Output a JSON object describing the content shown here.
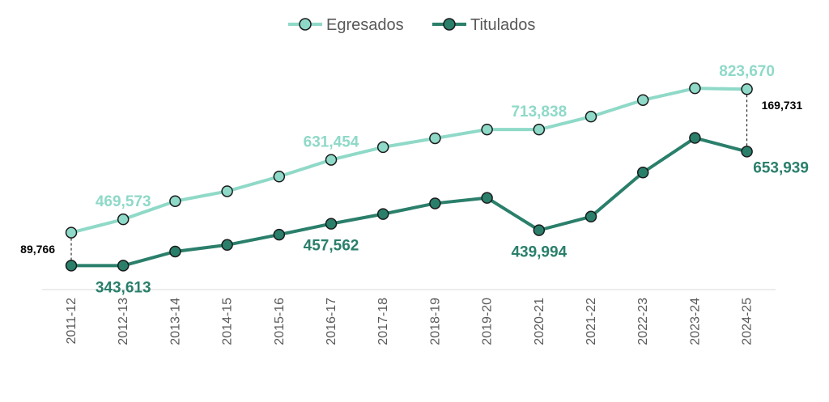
{
  "chart_data": {
    "type": "line",
    "title": "",
    "xlabel": "",
    "ylabel": "",
    "ylim": [
      0,
      1000000
    ],
    "grid": false,
    "legend_position": "top-center",
    "categories": [
      "2011-12",
      "2012-13",
      "2013-14",
      "2014-15",
      "2015-16",
      "2016-17",
      "2017-18",
      "2018-19",
      "2019-20",
      "2020-21",
      "2021-22",
      "2022-23",
      "2023-24",
      "2024-25"
    ],
    "series": [
      {
        "name": "Egresados",
        "color": "#8fd9c8",
        "values": [
          433400,
          469573,
          519000,
          546000,
          586000,
          631454,
          666000,
          690000,
          714000,
          713838,
          749000,
          794000,
          826000,
          823670
        ]
      },
      {
        "name": "Titulados",
        "color": "#2a7f6b",
        "values": [
          343634,
          343613,
          382000,
          400000,
          428000,
          457562,
          484000,
          513000,
          528000,
          439994,
          477000,
          597000,
          691000,
          653939
        ]
      }
    ],
    "data_labels": [
      {
        "series": 0,
        "index": 1,
        "text": "469,573",
        "pos": "above"
      },
      {
        "series": 0,
        "index": 5,
        "text": "631,454",
        "pos": "above"
      },
      {
        "series": 0,
        "index": 9,
        "text": "713,838",
        "pos": "above"
      },
      {
        "series": 0,
        "index": 13,
        "text": "823,670",
        "pos": "above"
      },
      {
        "series": 1,
        "index": 1,
        "text": "343,613",
        "pos": "below"
      },
      {
        "series": 1,
        "index": 5,
        "text": "457,562",
        "pos": "below"
      },
      {
        "series": 1,
        "index": 9,
        "text": "439,994",
        "pos": "below"
      },
      {
        "series": 1,
        "index": 13,
        "text": "653,939",
        "pos": "below-right"
      }
    ],
    "gap_labels": [
      {
        "index": 0,
        "text": "89,766",
        "side": "left"
      },
      {
        "index": 13,
        "text": "169,731",
        "side": "right"
      }
    ]
  }
}
